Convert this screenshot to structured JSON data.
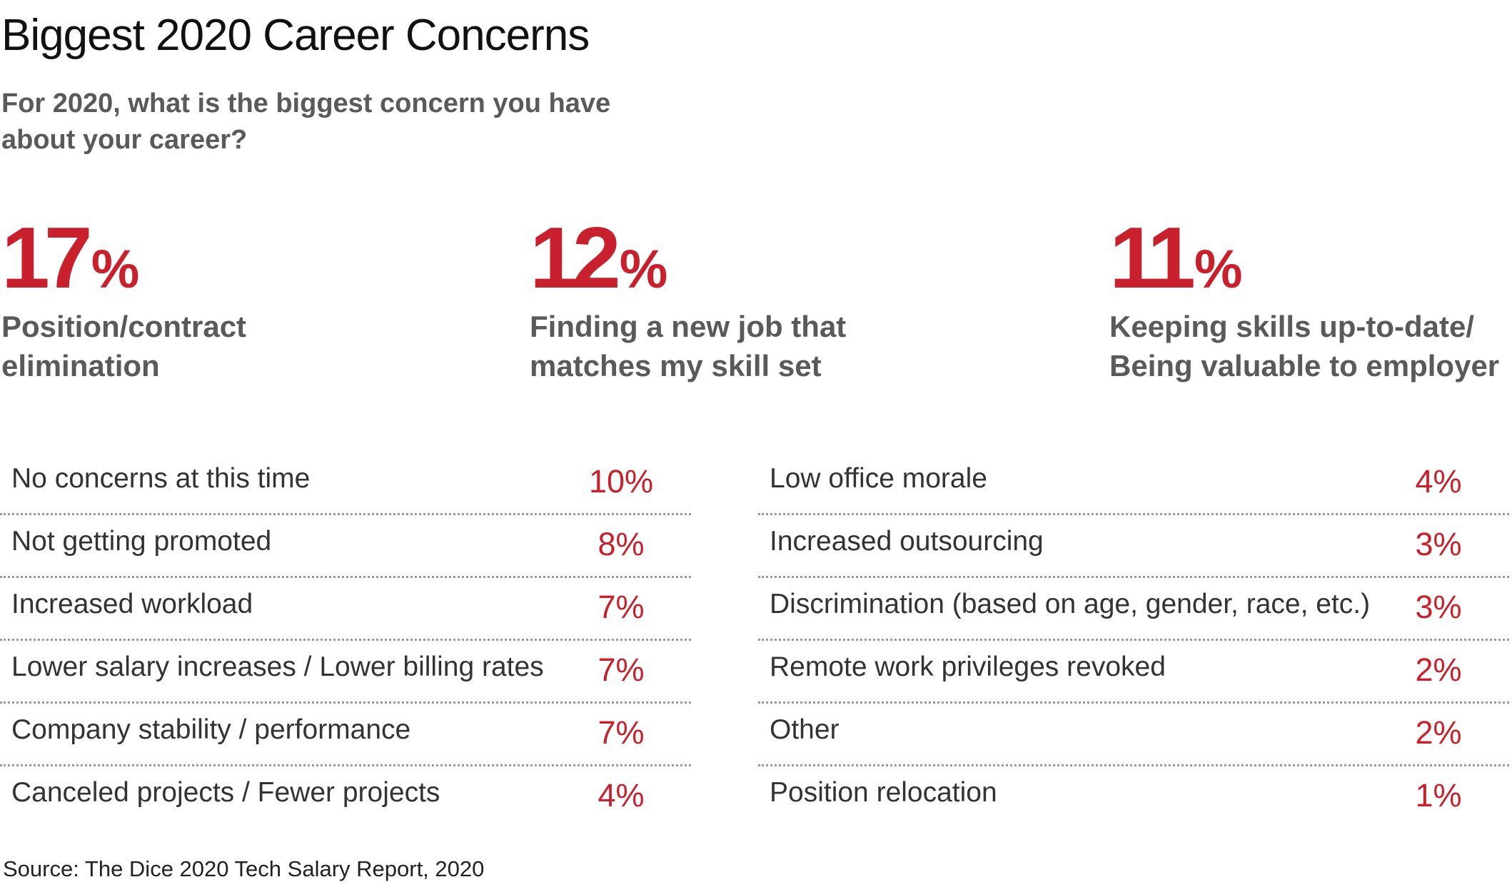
{
  "title": "Biggest 2020 Career Concerns",
  "subtitle": "For 2020, what is the biggest concern you have about your career?",
  "colors": {
    "accent": "#c8202c",
    "heading": "#111111",
    "label": "#5a5a5a"
  },
  "chart_data": {
    "type": "table",
    "highlights": [
      {
        "value_num": "17",
        "value_unit": "%",
        "label_line1": "Position/contract",
        "label_line2": "elimination"
      },
      {
        "value_num": "12",
        "value_unit": "%",
        "label_line1": "Finding a new job that",
        "label_line2": "matches my skill set"
      },
      {
        "value_num": "11",
        "value_unit": "%",
        "label_line1": "Keeping skills up-to-date/",
        "label_line2": "Being valuable to employer"
      }
    ],
    "left_list": [
      {
        "label": "No concerns at this time",
        "value": "10%"
      },
      {
        "label": "Not getting promoted",
        "value": "8%"
      },
      {
        "label": "Increased workload",
        "value": "7%"
      },
      {
        "label": "Lower salary increases / Lower billing rates",
        "value": "7%"
      },
      {
        "label": "Company stability / performance",
        "value": "7%"
      },
      {
        "label": "Canceled projects / Fewer projects",
        "value": "4%"
      }
    ],
    "right_list": [
      {
        "label": "Low office morale",
        "value": "4%"
      },
      {
        "label": "Increased outsourcing",
        "value": "3%"
      },
      {
        "label": "Discrimination (based on age, gender, race, etc.)",
        "value": "3%"
      },
      {
        "label": "Remote work privileges revoked",
        "value": "2%"
      },
      {
        "label": "Other",
        "value": "2%"
      },
      {
        "label": "Position relocation",
        "value": "1%"
      }
    ]
  },
  "source": "Source: The Dice 2020 Tech Salary Report, 2020"
}
